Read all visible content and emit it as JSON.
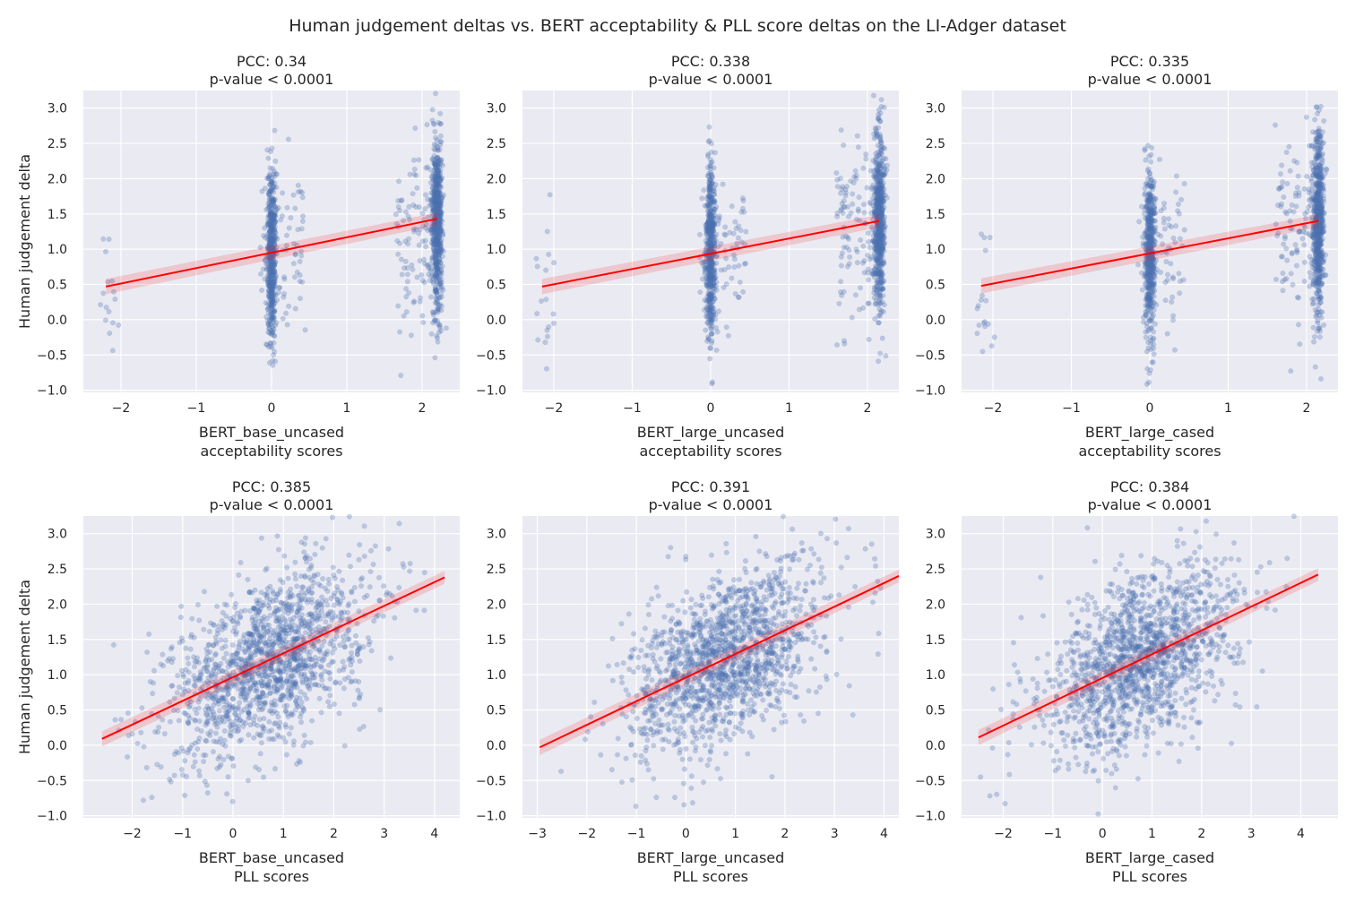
{
  "figure": {
    "title": "Human judgement deltas vs. BERT acceptability & PLL score deltas on the LI-Adger dataset"
  },
  "colors": {
    "points": "#4c72b0",
    "fit_line": "#ff0000",
    "background": "#eaeaf2",
    "grid": "#ffffff"
  },
  "chart_data": [
    {
      "type": "scatter",
      "title_line1": "PCC: 0.34",
      "title_line2": "p-value < 0.0001",
      "xlabel_line1": "BERT_base_uncased",
      "xlabel_line2": "acceptability scores",
      "ylabel": "Human judgement delta",
      "xlim": [
        -2.5,
        2.5
      ],
      "ylim": [
        -1.03,
        3.25
      ],
      "xticks": [
        -2,
        -1,
        0,
        1,
        2
      ],
      "yticks": [
        -1.0,
        -0.5,
        0.0,
        0.5,
        1.0,
        1.5,
        2.0,
        2.5,
        3.0
      ],
      "fit": {
        "x": [
          -2.2,
          2.2
        ],
        "y": [
          0.47,
          1.43
        ]
      },
      "point_distribution": "clusters at x = -2.2, 0, 2.2 with jitter",
      "grid": true,
      "legend": "none"
    },
    {
      "type": "scatter",
      "title_line1": "PCC: 0.338",
      "title_line2": "p-value < 0.0001",
      "xlabel_line1": "BERT_large_uncased",
      "xlabel_line2": "acceptability scores",
      "ylabel": "",
      "xlim": [
        -2.4,
        2.4
      ],
      "ylim": [
        -1.03,
        3.25
      ],
      "xticks": [
        -2,
        -1,
        0,
        1,
        2
      ],
      "yticks": [
        -1.0,
        -0.5,
        0.0,
        0.5,
        1.0,
        1.5,
        2.0,
        2.5,
        3.0
      ],
      "fit": {
        "x": [
          -2.15,
          2.15
        ],
        "y": [
          0.47,
          1.4
        ]
      },
      "point_distribution": "clusters at x = -2.15, 0, 2.15 with jitter",
      "grid": true,
      "legend": "none"
    },
    {
      "type": "scatter",
      "title_line1": "PCC: 0.335",
      "title_line2": "p-value < 0.0001",
      "xlabel_line1": "BERT_large_cased",
      "xlabel_line2": "acceptability scores",
      "ylabel": "",
      "xlim": [
        -2.4,
        2.4
      ],
      "ylim": [
        -1.03,
        3.25
      ],
      "xticks": [
        -2,
        -1,
        0,
        1,
        2
      ],
      "yticks": [
        -1.0,
        -0.5,
        0.0,
        0.5,
        1.0,
        1.5,
        2.0,
        2.5,
        3.0
      ],
      "fit": {
        "x": [
          -2.15,
          2.15
        ],
        "y": [
          0.48,
          1.4
        ]
      },
      "point_distribution": "clusters at x = -2.15, 0, 2.15 with jitter",
      "grid": true,
      "legend": "none"
    },
    {
      "type": "scatter",
      "title_line1": "PCC: 0.385",
      "title_line2": "p-value < 0.0001",
      "xlabel_line1": "BERT_base_uncased",
      "xlabel_line2": "PLL scores",
      "ylabel": "Human judgement delta",
      "xlim": [
        -2.97,
        4.5
      ],
      "ylim": [
        -1.03,
        3.25
      ],
      "xticks": [
        -2,
        -1,
        0,
        1,
        2,
        3,
        4
      ],
      "yticks": [
        -1.0,
        -0.5,
        0.0,
        0.5,
        1.0,
        1.5,
        2.0,
        2.5,
        3.0
      ],
      "fit": {
        "x": [
          -2.6,
          4.2
        ],
        "y": [
          0.09,
          2.38
        ]
      },
      "point_distribution": "continuous cloud centered near x = 0.7, y = 1.2",
      "grid": true,
      "legend": "none"
    },
    {
      "type": "scatter",
      "title_line1": "PCC: 0.391",
      "title_line2": "p-value < 0.0001",
      "xlabel_line1": "BERT_large_uncased",
      "xlabel_line2": "PLL scores",
      "ylabel": "",
      "xlim": [
        -3.3,
        4.3
      ],
      "ylim": [
        -1.03,
        3.25
      ],
      "xticks": [
        -3,
        -2,
        -1,
        0,
        1,
        2,
        3,
        4
      ],
      "yticks": [
        -1.0,
        -0.5,
        0.0,
        0.5,
        1.0,
        1.5,
        2.0,
        2.5,
        3.0
      ],
      "fit": {
        "x": [
          -2.95,
          4.3
        ],
        "y": [
          -0.03,
          2.4
        ]
      },
      "point_distribution": "continuous cloud centered near x = 0.8, y = 1.2",
      "grid": true,
      "legend": "none"
    },
    {
      "type": "scatter",
      "title_line1": "PCC: 0.384",
      "title_line2": "p-value < 0.0001",
      "xlabel_line1": "BERT_large_cased",
      "xlabel_line2": "PLL scores",
      "ylabel": "",
      "xlim": [
        -2.84,
        4.75
      ],
      "ylim": [
        -1.03,
        3.25
      ],
      "xticks": [
        -2,
        -1,
        0,
        1,
        2,
        3,
        4
      ],
      "yticks": [
        -1.0,
        -0.5,
        0.0,
        0.5,
        1.0,
        1.5,
        2.0,
        2.5,
        3.0
      ],
      "fit": {
        "x": [
          -2.5,
          4.35
        ],
        "y": [
          0.11,
          2.42
        ]
      },
      "point_distribution": "continuous cloud centered near x = 0.8, y = 1.2",
      "grid": true,
      "legend": "none"
    }
  ]
}
